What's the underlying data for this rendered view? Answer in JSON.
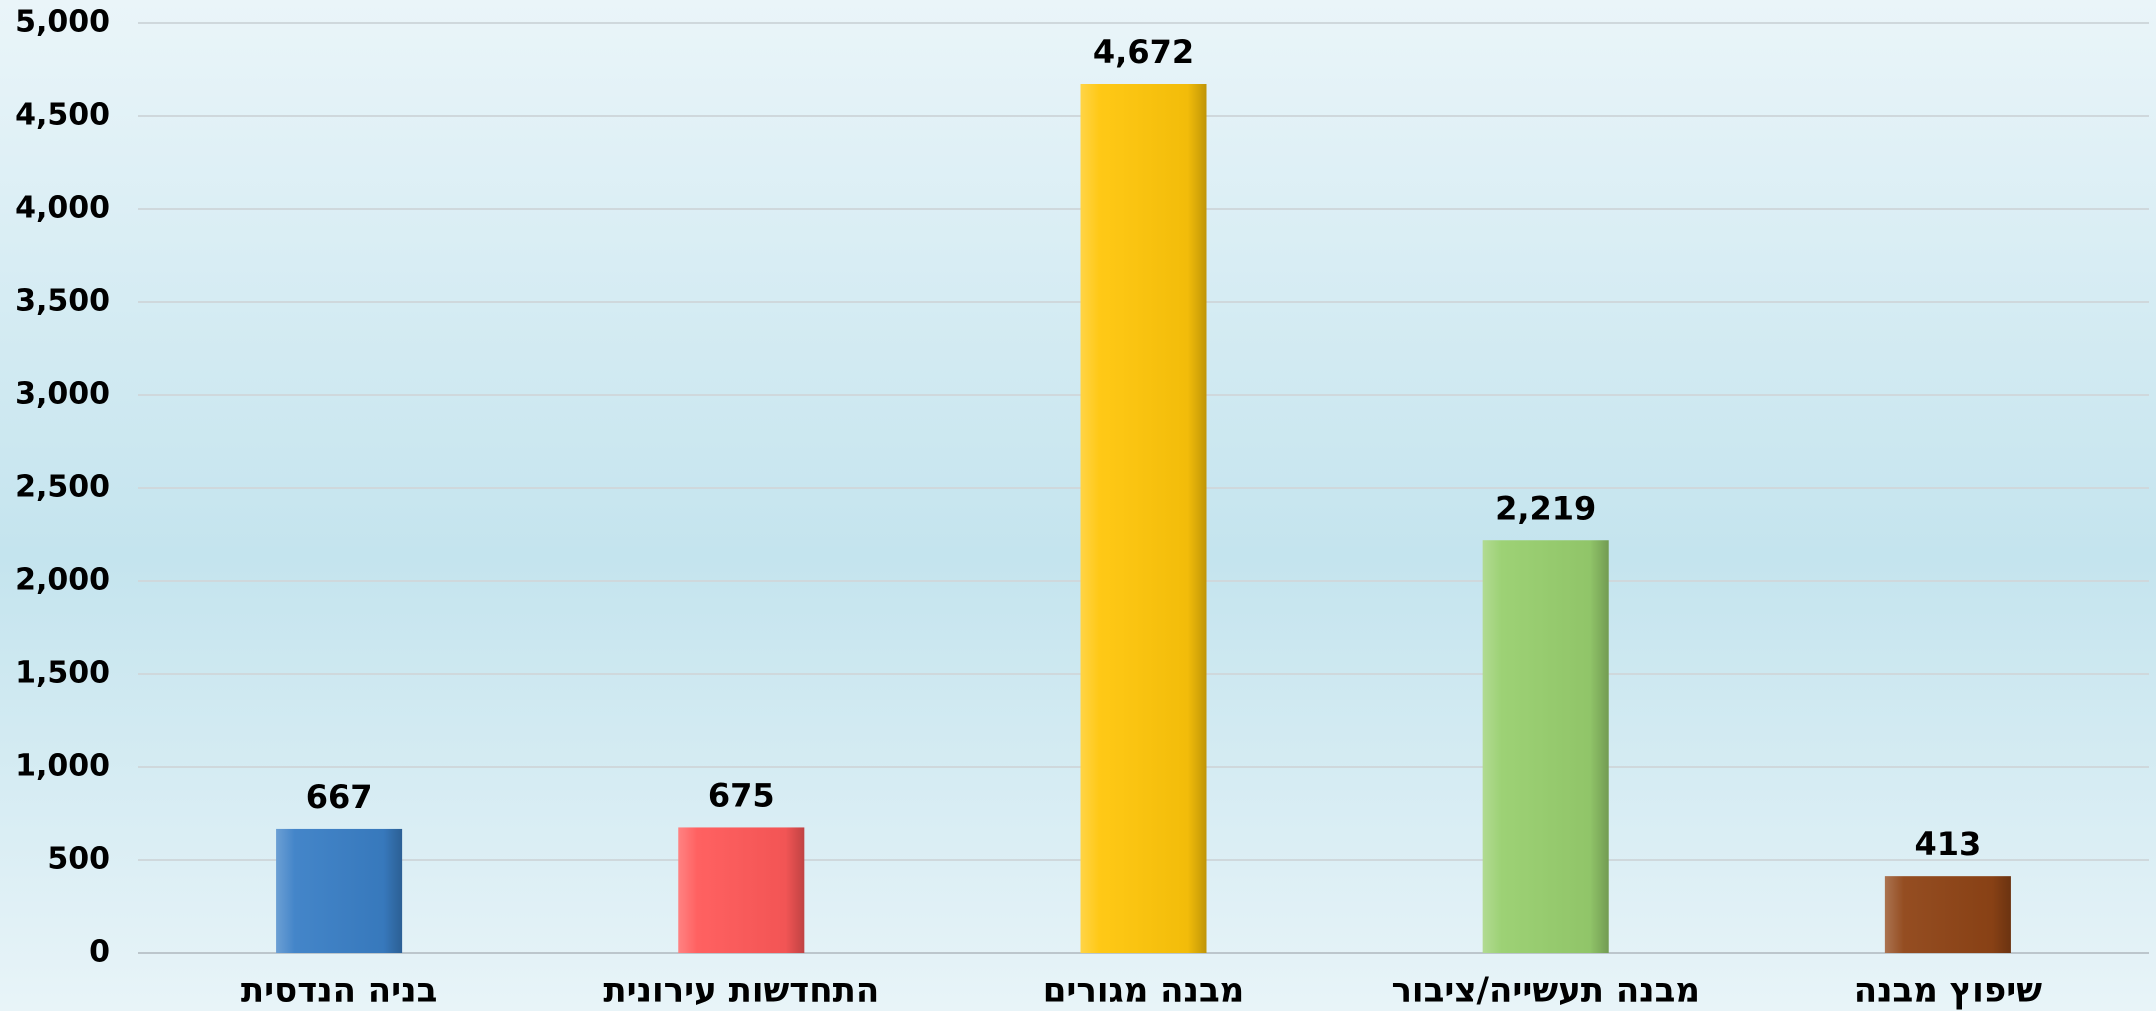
{
  "chart_data": {
    "type": "bar",
    "categories": [
      "בניה הנדסית",
      "התחדשות עירונית",
      "מבנה מגורים",
      "מבנה תעשייה/ציבור",
      "שיפוץ מבנה"
    ],
    "values": [
      667,
      675,
      4672,
      2219,
      413
    ],
    "value_labels": [
      "667",
      "675",
      "4,672",
      "2,219",
      "413"
    ],
    "colors": [
      "#3a7fc6",
      "#ff5959",
      "#ffc60a",
      "#98cf6e",
      "#8f4416"
    ],
    "ylim": [
      0,
      5000
    ],
    "yticks": [
      0,
      500,
      {
        "value": 1000,
        "label": "1,000"
      },
      {
        "value": 1500,
        "label": "1,500"
      },
      {
        "value": 2000,
        "label": "2,000"
      },
      {
        "value": 2500,
        "label": "2,500"
      },
      {
        "value": 3000,
        "label": "3,000"
      },
      {
        "value": 3500,
        "label": "3,500"
      },
      {
        "value": 4000,
        "label": "4,000"
      },
      {
        "value": 4500,
        "label": "4,500"
      },
      {
        "value": 5000,
        "label": "5,000"
      }
    ],
    "grid": true
  }
}
